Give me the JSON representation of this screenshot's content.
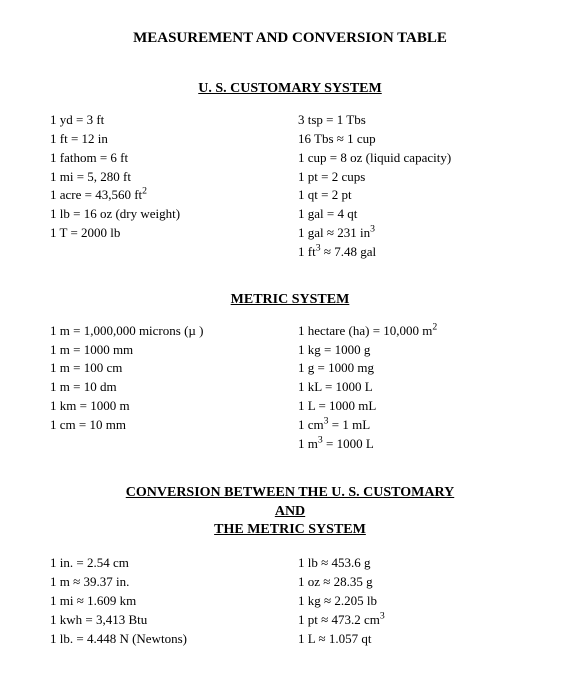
{
  "title": "MEASUREMENT AND CONVERSION TABLE",
  "sections": {
    "us": {
      "heading": "U. S. CUSTOMARY SYSTEM",
      "left": [
        "1 yd = 3 ft",
        "1 ft = 12 in",
        "1 fathom = 6 ft",
        "1 mi = 5, 280 ft",
        "1 acre = 43,560 ft²",
        "1 lb = 16 oz (dry weight)",
        "1 T = 2000 lb"
      ],
      "right": [
        "3 tsp = 1 Tbs",
        "16 Tbs ≈ 1 cup",
        "1 cup = 8 oz (liquid capacity)",
        "1 pt = 2 cups",
        "1 qt = 2 pt",
        "1 gal = 4 qt",
        "1 gal ≈ 231 in³",
        "1 ft³ ≈ 7.48 gal"
      ]
    },
    "metric": {
      "heading": "METRIC SYSTEM",
      "left": [
        "1 m = 1,000,000 microns (µ )",
        "1 m = 1000 mm",
        "1 m = 100 cm",
        "1 m = 10 dm",
        "1 km = 1000 m",
        "1 cm = 10 mm"
      ],
      "right": [
        "1 hectare (ha) = 10,000 m²",
        "1 kg = 1000 g",
        "1 g = 1000 mg",
        "1 kL = 1000 L",
        "1 L = 1000 mL",
        "1 cm³  = 1 mL",
        "1 m³  = 1000 L"
      ]
    },
    "conv": {
      "heading1": "CONVERSION BETWEEN THE U. S. CUSTOMARY",
      "heading2": "AND",
      "heading3": "THE METRIC SYSTEM",
      "left": [
        "1 in. = 2.54 cm",
        "1 m ≈ 39.37 in.",
        "1 mi ≈ 1.609 km",
        "1 kwh = 3,413 Btu",
        "1 lb. = 4.448 N (Newtons)"
      ],
      "right": [
        "1 lb ≈ 453.6 g",
        "1 oz ≈ 28.35 g",
        "1 kg ≈ 2.205 lb",
        "1 pt ≈ 473.2 cm³",
        "1 L ≈ 1.057 qt"
      ]
    }
  },
  "style": {
    "background_color": "#ffffff",
    "text_color": "#000000",
    "title_fontsize": 15,
    "heading_fontsize": 14,
    "body_fontsize": 13,
    "font_family": "Times New Roman"
  }
}
